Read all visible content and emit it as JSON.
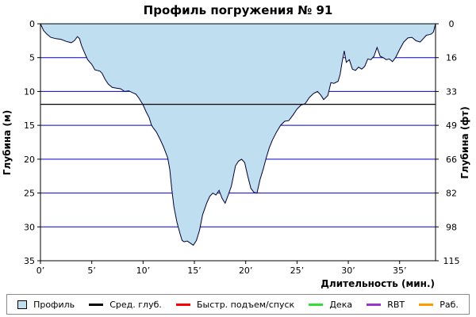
{
  "chart_data": {
    "type": "area",
    "title": "Профиль погружения № 91",
    "xlabel": "Длительность (мин.)",
    "ylabel": "Глубина (м)",
    "ylabel_right": "Глубина (фт)",
    "xlim": [
      0,
      38.5
    ],
    "ylim": [
      0,
      35
    ],
    "y_inverted": true,
    "x_ticks": [
      0,
      5,
      10,
      15,
      20,
      25,
      30,
      35
    ],
    "x_tick_labels": [
      "0’",
      "5’",
      "10’",
      "15’",
      "20’",
      "25’",
      "30’",
      "35’"
    ],
    "y_ticks": [
      0,
      5,
      10,
      15,
      20,
      25,
      30,
      35
    ],
    "y_tick_labels": [
      "0",
      "5",
      "10",
      "15",
      "20",
      "25",
      "30",
      "35"
    ],
    "right_ticks": [
      0,
      16,
      33,
      49,
      66,
      82,
      98,
      115
    ],
    "grid": true,
    "legend_position": "bottom",
    "average_depth": 11.9,
    "series": [
      {
        "name": "Профиль",
        "color": "#bfdff0",
        "x": [
          0,
          0.3,
          0.6,
          1,
          1.5,
          2,
          2.5,
          3,
          3.3,
          3.6,
          3.8,
          4,
          4.3,
          4.6,
          5,
          5.3,
          5.8,
          6,
          6.3,
          6.6,
          7,
          7.4,
          7.8,
          8.2,
          8.6,
          9,
          9.3,
          9.6,
          10,
          10.3,
          10.6,
          10.8,
          11,
          11.3,
          11.7,
          12,
          12.2,
          12.4,
          12.6,
          12.8,
          13,
          13.3,
          13.6,
          13.8,
          14,
          14.3,
          14.6,
          14.9,
          15.2,
          15.5,
          15.8,
          16.2,
          16.5,
          16.8,
          17.1,
          17.4,
          17.7,
          18,
          18.3,
          18.6,
          18.8,
          19,
          19.3,
          19.6,
          19.9,
          20.2,
          20.5,
          20.8,
          21.1,
          21.4,
          21.7,
          22,
          22.3,
          22.6,
          23,
          23.4,
          23.8,
          24.2,
          24.6,
          25,
          25.4,
          25.8,
          26.2,
          26.6,
          27,
          27.3,
          27.6,
          28,
          28.3,
          28.6,
          29,
          29.2,
          29.4,
          29.6,
          29.8,
          30.1,
          30.4,
          30.7,
          31,
          31.3,
          31.6,
          31.9,
          32.2,
          32.5,
          32.8,
          33.1,
          33.4,
          33.7,
          34,
          34.3,
          34.6,
          35,
          35.4,
          35.8,
          36.2,
          36.6,
          37,
          37.3,
          37.6,
          37.9,
          38.1,
          38.3,
          38.5
        ],
        "values": [
          0.0,
          1.0,
          1.5,
          2.0,
          2.2,
          2.3,
          2.6,
          2.8,
          2.5,
          1.9,
          2.2,
          3.2,
          4.3,
          5.3,
          6.0,
          6.8,
          7.0,
          7.3,
          8.2,
          8.9,
          9.4,
          9.5,
          9.6,
          10.0,
          9.9,
          10.2,
          10.4,
          11.0,
          12.0,
          13.0,
          13.9,
          14.9,
          15.4,
          16.0,
          17.2,
          18.2,
          19.0,
          19.8,
          21.5,
          24.5,
          27.0,
          29.3,
          31.0,
          32.0,
          32.2,
          32.1,
          32.4,
          32.7,
          32.0,
          30.5,
          28.2,
          26.5,
          25.5,
          25.0,
          25.3,
          24.6,
          25.8,
          26.5,
          25.3,
          24.0,
          22.5,
          21.0,
          20.3,
          20.0,
          20.5,
          22.5,
          24.3,
          24.9,
          25.0,
          23.0,
          21.5,
          19.8,
          18.3,
          17.2,
          16.0,
          15.0,
          14.4,
          14.3,
          13.5,
          12.6,
          12.0,
          11.8,
          10.9,
          10.3,
          10.0,
          10.5,
          11.2,
          10.6,
          8.7,
          8.8,
          8.5,
          7.5,
          5.6,
          4.0,
          5.7,
          5.3,
          6.7,
          6.9,
          6.4,
          6.7,
          6.3,
          5.2,
          5.3,
          4.8,
          3.5,
          4.8,
          5.0,
          5.3,
          5.2,
          5.6,
          5.0,
          3.8,
          2.7,
          2.1,
          2.0,
          2.5,
          2.7,
          2.2,
          1.7,
          1.6,
          1.5,
          1.2,
          0.0
        ]
      }
    ]
  },
  "legend": {
    "items": [
      {
        "label": "Профиль",
        "color": "#bfdff0",
        "kind": "box"
      },
      {
        "label": "Сред. глуб.",
        "color": "#000000",
        "kind": "line"
      },
      {
        "label": "Быстр. подъем/спуск",
        "color": "#ff0000",
        "kind": "line"
      },
      {
        "label": "Дека",
        "color": "#33dd33",
        "kind": "line"
      },
      {
        "label": "RBT",
        "color": "#9933cc",
        "kind": "line"
      },
      {
        "label": "Раб.",
        "color": "#ff9900",
        "kind": "line"
      }
    ]
  },
  "colors": {
    "grid": "#0000c8",
    "profile_line": "#000033",
    "average_line": "#000000"
  }
}
